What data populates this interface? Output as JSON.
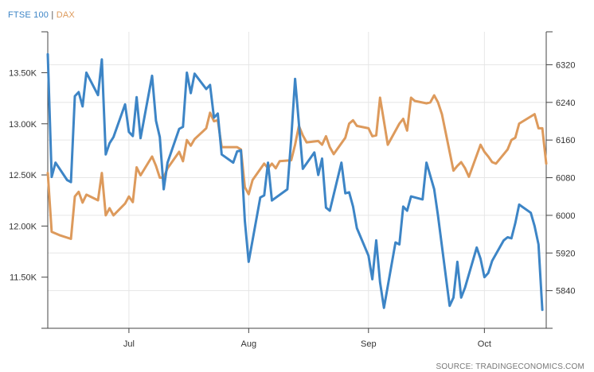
{
  "chart_data": {
    "type": "line",
    "legend": {
      "placement": "top-left",
      "separator": "|",
      "entries": [
        {
          "name": "FTSE 100",
          "color": "#3d85c6"
        },
        {
          "name": "DAX",
          "color": "#dd9a5c"
        }
      ]
    },
    "source": "SOURCE: TRADINGECONOMICS.COM",
    "grid": true,
    "x_axis": {
      "type": "date",
      "range": [
        "2024-06-10",
        "2024-10-17"
      ],
      "ticks": [
        {
          "date": "2024-07-01",
          "label": "Jul"
        },
        {
          "date": "2024-08-01",
          "label": "Aug"
        },
        {
          "date": "2024-09-01",
          "label": "Sep"
        },
        {
          "date": "2024-10-01",
          "label": "Oct"
        }
      ]
    },
    "y_axis_left": {
      "series": "FTSE 100",
      "range": [
        11000,
        13900
      ],
      "ticks": [
        {
          "value": 11500,
          "label": "11.50K"
        },
        {
          "value": 12000,
          "label": "12.00K"
        },
        {
          "value": 12500,
          "label": "12.50K"
        },
        {
          "value": 13000,
          "label": "13.00K"
        },
        {
          "value": 13500,
          "label": "13.50K"
        }
      ]
    },
    "y_axis_right": {
      "series": "DAX",
      "range": [
        5760,
        6390
      ],
      "ticks": [
        {
          "value": 5840,
          "label": "5840"
        },
        {
          "value": 5920,
          "label": "5920"
        },
        {
          "value": 6000,
          "label": "6000"
        },
        {
          "value": 6080,
          "label": "6080"
        },
        {
          "value": 6160,
          "label": "6160"
        },
        {
          "value": 6240,
          "label": "6240"
        },
        {
          "value": 6320,
          "label": "6320"
        }
      ]
    },
    "series": [
      {
        "name": "FTSE 100",
        "axis": "left",
        "color": "#3d85c6",
        "points": [
          [
            "2024-06-10",
            13680
          ],
          [
            "2024-06-11",
            12480
          ],
          [
            "2024-06-12",
            12620
          ],
          [
            "2024-06-15",
            12450
          ],
          [
            "2024-06-16",
            12430
          ],
          [
            "2024-06-17",
            13270
          ],
          [
            "2024-06-18",
            13310
          ],
          [
            "2024-06-19",
            13170
          ],
          [
            "2024-06-20",
            13500
          ],
          [
            "2024-06-23",
            13280
          ],
          [
            "2024-06-24",
            13630
          ],
          [
            "2024-06-25",
            12700
          ],
          [
            "2024-06-26",
            12810
          ],
          [
            "2024-06-27",
            12870
          ],
          [
            "2024-06-30",
            13190
          ],
          [
            "2024-07-01",
            12920
          ],
          [
            "2024-07-02",
            12880
          ],
          [
            "2024-07-03",
            13260
          ],
          [
            "2024-07-04",
            12860
          ],
          [
            "2024-07-07",
            13470
          ],
          [
            "2024-07-08",
            13030
          ],
          [
            "2024-07-09",
            12870
          ],
          [
            "2024-07-10",
            12360
          ],
          [
            "2024-07-11",
            12620
          ],
          [
            "2024-07-14",
            12950
          ],
          [
            "2024-07-15",
            12970
          ],
          [
            "2024-07-16",
            13500
          ],
          [
            "2024-07-17",
            13300
          ],
          [
            "2024-07-18",
            13490
          ],
          [
            "2024-07-21",
            13340
          ],
          [
            "2024-07-22",
            13380
          ],
          [
            "2024-07-23",
            13060
          ],
          [
            "2024-07-24",
            13100
          ],
          [
            "2024-07-25",
            12700
          ],
          [
            "2024-07-28",
            12620
          ],
          [
            "2024-07-29",
            12730
          ],
          [
            "2024-07-30",
            12740
          ],
          [
            "2024-07-31",
            12050
          ],
          [
            "2024-08-01",
            11650
          ],
          [
            "2024-08-04",
            12280
          ],
          [
            "2024-08-05",
            12300
          ],
          [
            "2024-08-06",
            12620
          ],
          [
            "2024-08-07",
            12250
          ],
          [
            "2024-08-11",
            12360
          ],
          [
            "2024-08-12",
            12850
          ],
          [
            "2024-08-13",
            13440
          ],
          [
            "2024-08-14",
            13000
          ],
          [
            "2024-08-15",
            12560
          ],
          [
            "2024-08-18",
            12720
          ],
          [
            "2024-08-19",
            12500
          ],
          [
            "2024-08-20",
            12660
          ],
          [
            "2024-08-21",
            12180
          ],
          [
            "2024-08-22",
            12150
          ],
          [
            "2024-08-25",
            12620
          ],
          [
            "2024-08-26",
            12320
          ],
          [
            "2024-08-27",
            12330
          ],
          [
            "2024-08-28",
            12190
          ],
          [
            "2024-08-29",
            11980
          ],
          [
            "2024-09-01",
            11710
          ],
          [
            "2024-09-02",
            11480
          ],
          [
            "2024-09-03",
            11860
          ],
          [
            "2024-09-04",
            11450
          ],
          [
            "2024-09-05",
            11200
          ],
          [
            "2024-09-08",
            11840
          ],
          [
            "2024-09-09",
            11820
          ],
          [
            "2024-09-10",
            12190
          ],
          [
            "2024-09-11",
            12150
          ],
          [
            "2024-09-12",
            12290
          ],
          [
            "2024-09-15",
            12260
          ],
          [
            "2024-09-16",
            12620
          ],
          [
            "2024-09-18",
            12360
          ],
          [
            "2024-09-19",
            12100
          ],
          [
            "2024-09-22",
            11220
          ],
          [
            "2024-09-23",
            11300
          ],
          [
            "2024-09-24",
            11650
          ],
          [
            "2024-09-25",
            11300
          ],
          [
            "2024-09-26",
            11400
          ],
          [
            "2024-09-29",
            11790
          ],
          [
            "2024-09-30",
            11680
          ],
          [
            "2024-10-01",
            11500
          ],
          [
            "2024-10-02",
            11540
          ],
          [
            "2024-10-03",
            11660
          ],
          [
            "2024-10-06",
            11860
          ],
          [
            "2024-10-07",
            11890
          ],
          [
            "2024-10-08",
            11880
          ],
          [
            "2024-10-09",
            12030
          ],
          [
            "2024-10-10",
            12210
          ],
          [
            "2024-10-13",
            12130
          ],
          [
            "2024-10-14",
            12000
          ],
          [
            "2024-10-15",
            11820
          ],
          [
            "2024-10-16",
            11180
          ]
        ]
      },
      {
        "name": "DAX",
        "axis": "right",
        "color": "#dd9a5c",
        "points": [
          [
            "2024-06-10",
            6090
          ],
          [
            "2024-06-11",
            5965
          ],
          [
            "2024-06-13",
            5958
          ],
          [
            "2024-06-16",
            5950
          ],
          [
            "2024-06-17",
            6040
          ],
          [
            "2024-06-18",
            6050
          ],
          [
            "2024-06-19",
            6027
          ],
          [
            "2024-06-20",
            6044
          ],
          [
            "2024-06-23",
            6032
          ],
          [
            "2024-06-24",
            6090
          ],
          [
            "2024-06-25",
            6000
          ],
          [
            "2024-06-26",
            6015
          ],
          [
            "2024-06-27",
            6000
          ],
          [
            "2024-06-30",
            6025
          ],
          [
            "2024-07-01",
            6040
          ],
          [
            "2024-07-02",
            6028
          ],
          [
            "2024-07-03",
            6102
          ],
          [
            "2024-07-04",
            6085
          ],
          [
            "2024-07-07",
            6125
          ],
          [
            "2024-07-08",
            6105
          ],
          [
            "2024-07-09",
            6080
          ],
          [
            "2024-07-10",
            6080
          ],
          [
            "2024-07-11",
            6100
          ],
          [
            "2024-07-14",
            6135
          ],
          [
            "2024-07-15",
            6115
          ],
          [
            "2024-07-16",
            6160
          ],
          [
            "2024-07-17",
            6148
          ],
          [
            "2024-07-18",
            6162
          ],
          [
            "2024-07-21",
            6185
          ],
          [
            "2024-07-22",
            6218
          ],
          [
            "2024-07-23",
            6200
          ],
          [
            "2024-07-24",
            6202
          ],
          [
            "2024-07-25",
            6145
          ],
          [
            "2024-07-29",
            6145
          ],
          [
            "2024-07-30",
            6140
          ],
          [
            "2024-07-31",
            6060
          ],
          [
            "2024-08-01",
            6045
          ],
          [
            "2024-08-02",
            6075
          ],
          [
            "2024-08-05",
            6110
          ],
          [
            "2024-08-06",
            6100
          ],
          [
            "2024-08-07",
            6110
          ],
          [
            "2024-08-08",
            6100
          ],
          [
            "2024-08-09",
            6115
          ],
          [
            "2024-08-12",
            6117
          ],
          [
            "2024-08-13",
            6150
          ],
          [
            "2024-08-14",
            6190
          ],
          [
            "2024-08-15",
            6170
          ],
          [
            "2024-08-16",
            6155
          ],
          [
            "2024-08-19",
            6158
          ],
          [
            "2024-08-20",
            6150
          ],
          [
            "2024-08-21",
            6168
          ],
          [
            "2024-08-22",
            6145
          ],
          [
            "2024-08-23",
            6130
          ],
          [
            "2024-08-26",
            6165
          ],
          [
            "2024-08-27",
            6195
          ],
          [
            "2024-08-28",
            6202
          ],
          [
            "2024-08-29",
            6190
          ],
          [
            "2024-09-01",
            6185
          ],
          [
            "2024-09-02",
            6168
          ],
          [
            "2024-09-03",
            6170
          ],
          [
            "2024-09-04",
            6250
          ],
          [
            "2024-09-05",
            6200
          ],
          [
            "2024-09-06",
            6150
          ],
          [
            "2024-09-09",
            6195
          ],
          [
            "2024-09-10",
            6205
          ],
          [
            "2024-09-11",
            6180
          ],
          [
            "2024-09-12",
            6250
          ],
          [
            "2024-09-13",
            6243
          ],
          [
            "2024-09-16",
            6238
          ],
          [
            "2024-09-17",
            6240
          ],
          [
            "2024-09-18",
            6255
          ],
          [
            "2024-09-19",
            6240
          ],
          [
            "2024-09-20",
            6215
          ],
          [
            "2024-09-23",
            6095
          ],
          [
            "2024-09-24",
            6105
          ],
          [
            "2024-09-25",
            6113
          ],
          [
            "2024-09-26",
            6100
          ],
          [
            "2024-09-27",
            6082
          ],
          [
            "2024-09-30",
            6150
          ],
          [
            "2024-10-01",
            6135
          ],
          [
            "2024-10-02",
            6125
          ],
          [
            "2024-10-03",
            6113
          ],
          [
            "2024-10-04",
            6110
          ],
          [
            "2024-10-07",
            6140
          ],
          [
            "2024-10-08",
            6160
          ],
          [
            "2024-10-09",
            6165
          ],
          [
            "2024-10-10",
            6195
          ],
          [
            "2024-10-11",
            6200
          ],
          [
            "2024-10-14",
            6215
          ],
          [
            "2024-10-15",
            6185
          ],
          [
            "2024-10-16",
            6185
          ],
          [
            "2024-10-17",
            6110
          ]
        ]
      }
    ]
  }
}
